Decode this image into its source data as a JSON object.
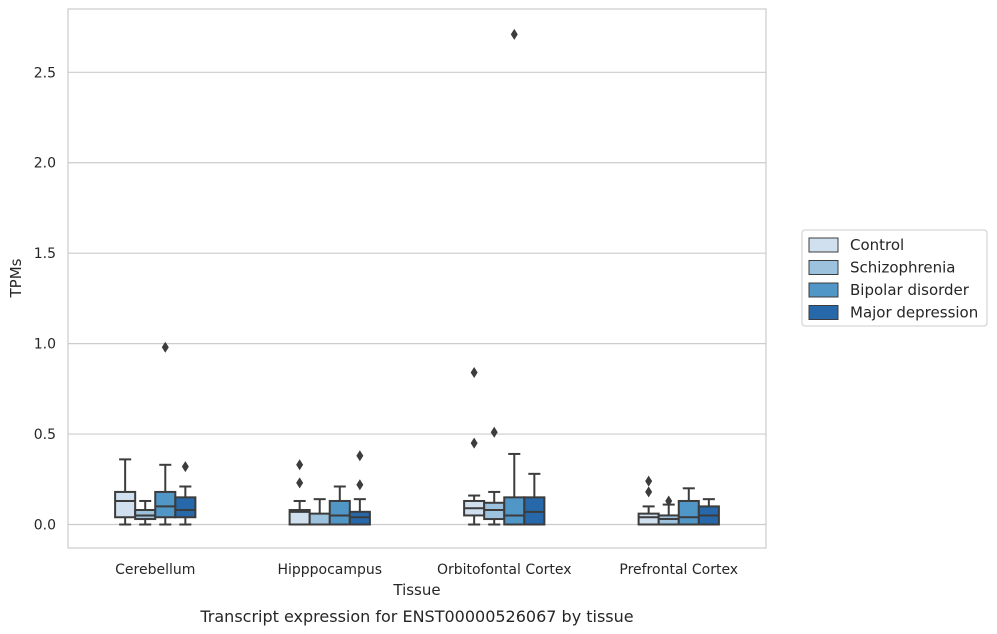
{
  "chart_data": {
    "type": "box",
    "xlabel": "Tissue",
    "ylabel": "TPMs",
    "caption": "Transcript expression for ENST00000526067 by tissue",
    "ylim": [
      -0.13,
      2.85
    ],
    "yticks": [
      0.0,
      0.5,
      1.0,
      1.5,
      2.0,
      2.5
    ],
    "ytick_labels": [
      "0.0",
      "0.5",
      "1.0",
      "1.5",
      "2.0",
      "2.5"
    ],
    "grid": "horizontal",
    "legend_position": "right",
    "categories": [
      "Cerebellum",
      "Hipppocampus",
      "Orbitofontal Cortex",
      "Prefrontal Cortex"
    ],
    "series": [
      {
        "name": "Control",
        "color": "#d0e0ef",
        "boxes": [
          {
            "whisker_low": 0.0,
            "q1": 0.04,
            "median": 0.13,
            "q3": 0.18,
            "whisker_high": 0.36,
            "outliers": []
          },
          {
            "whisker_low": 0.0,
            "q1": 0.0,
            "median": 0.07,
            "q3": 0.08,
            "whisker_high": 0.13,
            "outliers": [
              0.23,
              0.33
            ]
          },
          {
            "whisker_low": 0.0,
            "q1": 0.05,
            "median": 0.09,
            "q3": 0.13,
            "whisker_high": 0.16,
            "outliers": [
              0.45,
              0.84
            ]
          },
          {
            "whisker_low": 0.0,
            "q1": 0.0,
            "median": 0.04,
            "q3": 0.06,
            "whisker_high": 0.1,
            "outliers": [
              0.18,
              0.24
            ]
          }
        ]
      },
      {
        "name": "Schizophrenia",
        "color": "#9cc2dd",
        "boxes": [
          {
            "whisker_low": 0.0,
            "q1": 0.03,
            "median": 0.05,
            "q3": 0.08,
            "whisker_high": 0.13,
            "outliers": []
          },
          {
            "whisker_low": 0.0,
            "q1": 0.0,
            "median": 0.0,
            "q3": 0.06,
            "whisker_high": 0.14,
            "outliers": []
          },
          {
            "whisker_low": 0.0,
            "q1": 0.03,
            "median": 0.08,
            "q3": 0.12,
            "whisker_high": 0.18,
            "outliers": [
              0.51
            ]
          },
          {
            "whisker_low": 0.0,
            "q1": 0.0,
            "median": 0.03,
            "q3": 0.05,
            "whisker_high": 0.11,
            "outliers": [
              0.13
            ]
          }
        ]
      },
      {
        "name": "Bipolar disorder",
        "color": "#5096c6",
        "boxes": [
          {
            "whisker_low": 0.0,
            "q1": 0.04,
            "median": 0.1,
            "q3": 0.18,
            "whisker_high": 0.33,
            "outliers": [
              0.98
            ]
          },
          {
            "whisker_low": 0.0,
            "q1": 0.0,
            "median": 0.05,
            "q3": 0.13,
            "whisker_high": 0.21,
            "outliers": []
          },
          {
            "whisker_low": 0.0,
            "q1": 0.0,
            "median": 0.05,
            "q3": 0.15,
            "whisker_high": 0.39,
            "outliers": [
              2.71
            ]
          },
          {
            "whisker_low": 0.0,
            "q1": 0.0,
            "median": 0.04,
            "q3": 0.13,
            "whisker_high": 0.2,
            "outliers": []
          }
        ]
      },
      {
        "name": "Major depression",
        "color": "#2668a9",
        "boxes": [
          {
            "whisker_low": 0.0,
            "q1": 0.04,
            "median": 0.08,
            "q3": 0.15,
            "whisker_high": 0.21,
            "outliers": [
              0.32
            ]
          },
          {
            "whisker_low": 0.0,
            "q1": 0.0,
            "median": 0.04,
            "q3": 0.07,
            "whisker_high": 0.14,
            "outliers": [
              0.22,
              0.38
            ]
          },
          {
            "whisker_low": 0.0,
            "q1": 0.0,
            "median": 0.07,
            "q3": 0.15,
            "whisker_high": 0.28,
            "outliers": []
          },
          {
            "whisker_low": 0.0,
            "q1": 0.0,
            "median": 0.05,
            "q3": 0.1,
            "whisker_high": 0.14,
            "outliers": []
          }
        ]
      }
    ]
  }
}
